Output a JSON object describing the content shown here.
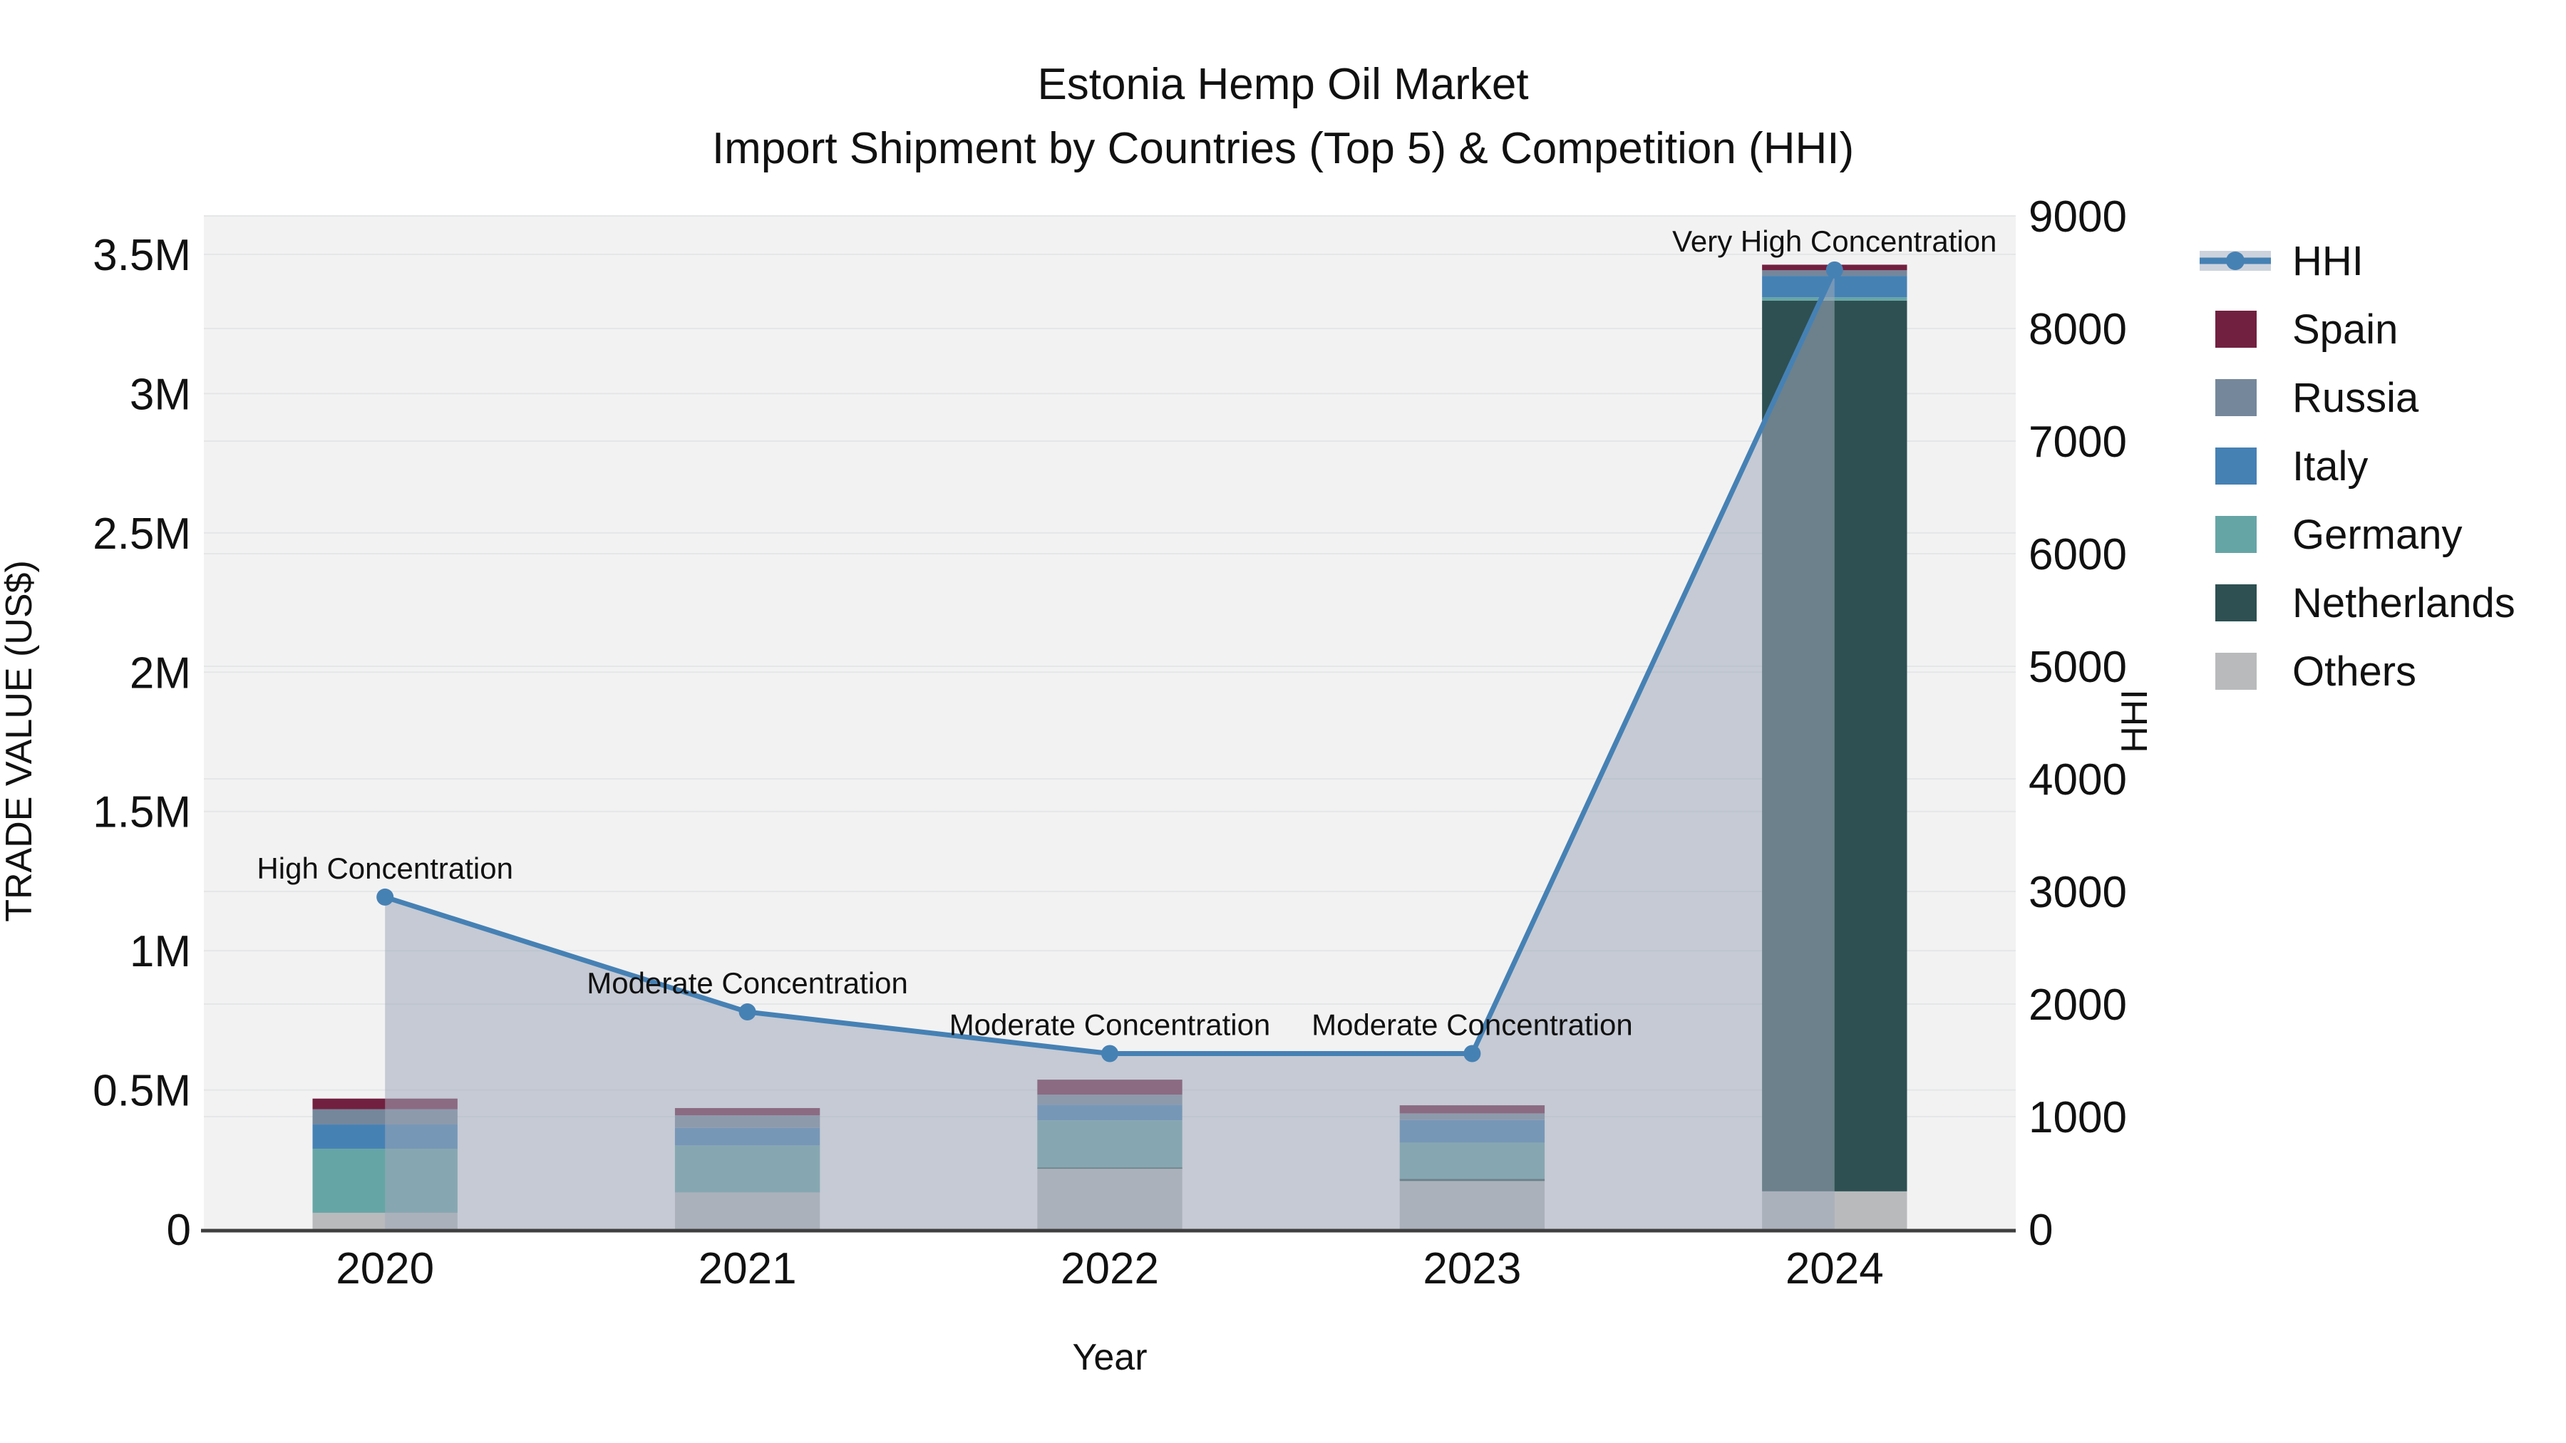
{
  "chart_data": {
    "type": "bar+line dual-axis (stacked bars with HHI area line)",
    "title": "Estonia Hemp Oil Market",
    "subtitle": "Import Shipment by Countries (Top 5) & Competition (HHI)",
    "xlabel": "Year",
    "ylabel_left": "TRADE VALUE (US$)",
    "ylabel_right": "HHI",
    "categories": [
      "2020",
      "2021",
      "2022",
      "2023",
      "2024"
    ],
    "bar_series_bottom_to_top": [
      {
        "name": "Others",
        "color": "#b9babc",
        "values": [
          59000,
          132000,
          217000,
          173000,
          136000
        ]
      },
      {
        "name": "Netherlands",
        "color": "#2e5052",
        "values": [
          0,
          0,
          5000,
          8000,
          3198000
        ]
      },
      {
        "name": "Germany",
        "color": "#66a5a6",
        "values": [
          230000,
          169000,
          169000,
          130000,
          12000
        ]
      },
      {
        "name": "Italy",
        "color": "#4681b4",
        "values": [
          87000,
          63000,
          56000,
          81000,
          77000
        ]
      },
      {
        "name": "Russia",
        "color": "#75879b",
        "values": [
          55000,
          45000,
          36000,
          24000,
          20000
        ]
      },
      {
        "name": "Spain",
        "color": "#72203f",
        "values": [
          38000,
          26000,
          54000,
          29000,
          20000
        ]
      }
    ],
    "bar_totals_usd": [
      469000,
      435000,
      537000,
      445000,
      3463000
    ],
    "hhi_series": {
      "name": "HHI",
      "values": [
        2950,
        1930,
        1560,
        1560,
        8520
      ],
      "line_color": "#4681b4",
      "area_fill": "rgba(160,170,185,0.55)",
      "legend_band_color": "#ccd3dd"
    },
    "annotations": [
      {
        "x": "2020",
        "text": "High Concentration"
      },
      {
        "x": "2021",
        "text": "Moderate Concentration"
      },
      {
        "x": "2022",
        "text": "Moderate Concentration"
      },
      {
        "x": "2023",
        "text": "Moderate Concentration"
      },
      {
        "x": "2024",
        "text": "Very High Concentration"
      }
    ],
    "y_left": {
      "tick_values": [
        0,
        500000,
        1000000,
        1500000,
        2000000,
        2500000,
        3000000,
        3500000
      ],
      "tick_labels": [
        "0",
        "0.5M",
        "1M",
        "1.5M",
        "2M",
        "2.5M",
        "3M",
        "3.5M"
      ],
      "max_tick": 3500000
    },
    "y_right": {
      "tick_values": [
        0,
        1000,
        2000,
        3000,
        4000,
        5000,
        6000,
        7000,
        8000,
        9000
      ],
      "tick_labels": [
        "0",
        "1000",
        "2000",
        "3000",
        "4000",
        "5000",
        "6000",
        "7000",
        "8000",
        "9000"
      ],
      "max_tick": 9000,
      "axis_range": [
        0,
        9000
      ]
    },
    "legend_order": [
      "HHI",
      "Spain",
      "Russia",
      "Italy",
      "Germany",
      "Netherlands",
      "Others"
    ],
    "legend_position": "right",
    "grid": true,
    "colors": {
      "plot_background": "#f2f2f3",
      "grid_line": "#e5e6e8",
      "x_axis_line": "#3f3f3f",
      "text": "#111111",
      "page_background": "#ffffff"
    }
  }
}
